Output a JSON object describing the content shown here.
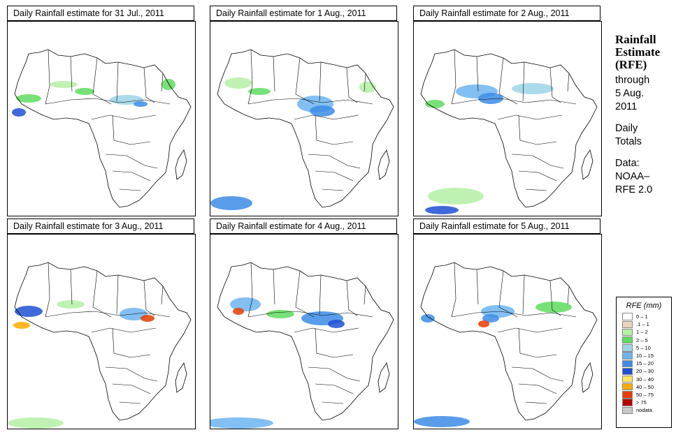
{
  "panels": [
    {
      "title": "Daily Rainfall estimate for  31 Jul., 2011"
    },
    {
      "title": "Daily Rainfall estimate for  1 Aug., 2011"
    },
    {
      "title": "Daily Rainfall estimate for  2 Aug., 2011"
    },
    {
      "title": "Daily Rainfall estimate for  3 Aug., 2011"
    },
    {
      "title": "Daily Rainfall estimate for  4 Aug., 2011"
    },
    {
      "title": "Daily Rainfall estimate for  5 Aug., 2011"
    }
  ],
  "sidebar": {
    "title_line1": "Rainfall",
    "title_line2": "Estimate",
    "title_line3": "(RFE)",
    "through": "through",
    "date_line1": "5 Aug.",
    "date_line2": "2011",
    "daily_line1": "Daily",
    "daily_line2": "Totals",
    "data_label": "Data:",
    "source_line1": "NOAA–",
    "source_line2": "RFE 2.0"
  },
  "legend": {
    "title": "RFE (mm)",
    "items": [
      {
        "label": "0 – 1",
        "color": "#ffffff"
      },
      {
        "label": ".1 – 1",
        "color": "#e8d5bc"
      },
      {
        "label": "1 – 2",
        "color": "#b4f0a4"
      },
      {
        "label": "2 – 5",
        "color": "#5fdc5f"
      },
      {
        "label": "5 – 10",
        "color": "#9cd4e8"
      },
      {
        "label": "10 – 15",
        "color": "#6cb4f0"
      },
      {
        "label": "15 – 20",
        "color": "#3c8ce6"
      },
      {
        "label": "20 – 30",
        "color": "#1e50d2"
      },
      {
        "label": "30 – 40",
        "color": "#ffe664"
      },
      {
        "label": "40 – 50",
        "color": "#ffaa00"
      },
      {
        "label": "50 – 75",
        "color": "#e63c00"
      },
      {
        "label": "> 75",
        "color": "#b40000"
      },
      {
        "label": "nodata",
        "color": "#c8c8c8"
      }
    ]
  }
}
